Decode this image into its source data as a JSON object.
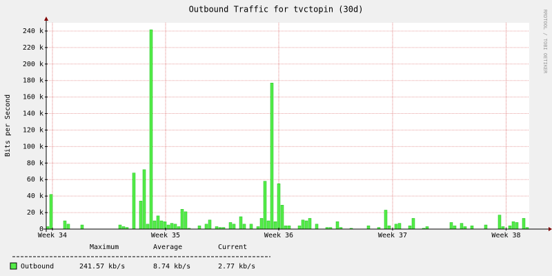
{
  "chart_data": {
    "type": "bar",
    "title": "Outbound Traffic for tvctopin (30d)",
    "y_label": "Bits per Second",
    "watermark": "RRDTOOL / TOBI OETIKER",
    "color": "#54ec48",
    "edge_color": "#1fbf1f",
    "grid": true,
    "xlim": [
      0,
      140
    ],
    "xticks": [
      {
        "value": 1.8,
        "label": "Week 34"
      },
      {
        "value": 34.6,
        "label": "Week 35"
      },
      {
        "value": 67.4,
        "label": "Week 36"
      },
      {
        "value": 100.4,
        "label": "Week 37"
      },
      {
        "value": 133.3,
        "label": "Week 38"
      }
    ],
    "ylim": [
      0,
      250000
    ],
    "yticks": [
      0,
      {
        "value": 20000,
        "label": "20 k"
      },
      {
        "value": 40000,
        "label": "40 k"
      },
      {
        "value": 60000,
        "label": "60 k"
      },
      {
        "value": 80000,
        "label": "80 k"
      },
      {
        "value": 100000,
        "label": "100 k"
      },
      {
        "value": 120000,
        "label": "120 k"
      },
      {
        "value": 140000,
        "label": "140 k"
      },
      {
        "value": 160000,
        "label": "160 k"
      },
      {
        "value": 180000,
        "label": "180 k"
      },
      {
        "value": 200000,
        "label": "200 k"
      },
      {
        "value": 220000,
        "label": "220 k"
      },
      {
        "value": 240000,
        "label": "240 k"
      }
    ],
    "values": [
      3000,
      42000,
      0,
      0,
      0,
      10000,
      6000,
      0,
      0,
      0,
      5000,
      0,
      0,
      0,
      0,
      0,
      0,
      0,
      0,
      0,
      0,
      5000,
      3000,
      2000,
      0,
      68000,
      0,
      34000,
      72000,
      6000,
      241570,
      10000,
      16000,
      10000,
      9000,
      5000,
      7000,
      6000,
      3000,
      24000,
      21000,
      1000,
      0,
      0,
      4000,
      0,
      6000,
      11000,
      0,
      3000,
      2000,
      2000,
      0,
      8000,
      6000,
      0,
      15000,
      6000,
      0,
      6000,
      0,
      3000,
      13000,
      58000,
      10000,
      177000,
      9000,
      55000,
      29000,
      4000,
      4000,
      0,
      0,
      4000,
      11000,
      10000,
      13000,
      0,
      6000,
      0,
      0,
      2000,
      2000,
      0,
      9000,
      2000,
      0,
      0,
      1000,
      0,
      0,
      0,
      0,
      4000,
      0,
      0,
      2000,
      0,
      23000,
      4000,
      0,
      6000,
      7000,
      0,
      0,
      4000,
      13000,
      0,
      0,
      1000,
      3000,
      0,
      0,
      0,
      0,
      0,
      0,
      8000,
      4000,
      0,
      7000,
      3000,
      0,
      4000,
      0,
      0,
      0,
      5000,
      0,
      0,
      0,
      17000,
      3000,
      0,
      4000,
      9000,
      8000,
      0,
      13000,
      2000
    ],
    "legend": {
      "columns": [
        "Maximum",
        "Average",
        "Current"
      ],
      "series_name": "Outbound",
      "stats": [
        "241.57 kb/s",
        "8.74 kb/s",
        "2.77 kb/s"
      ]
    }
  }
}
